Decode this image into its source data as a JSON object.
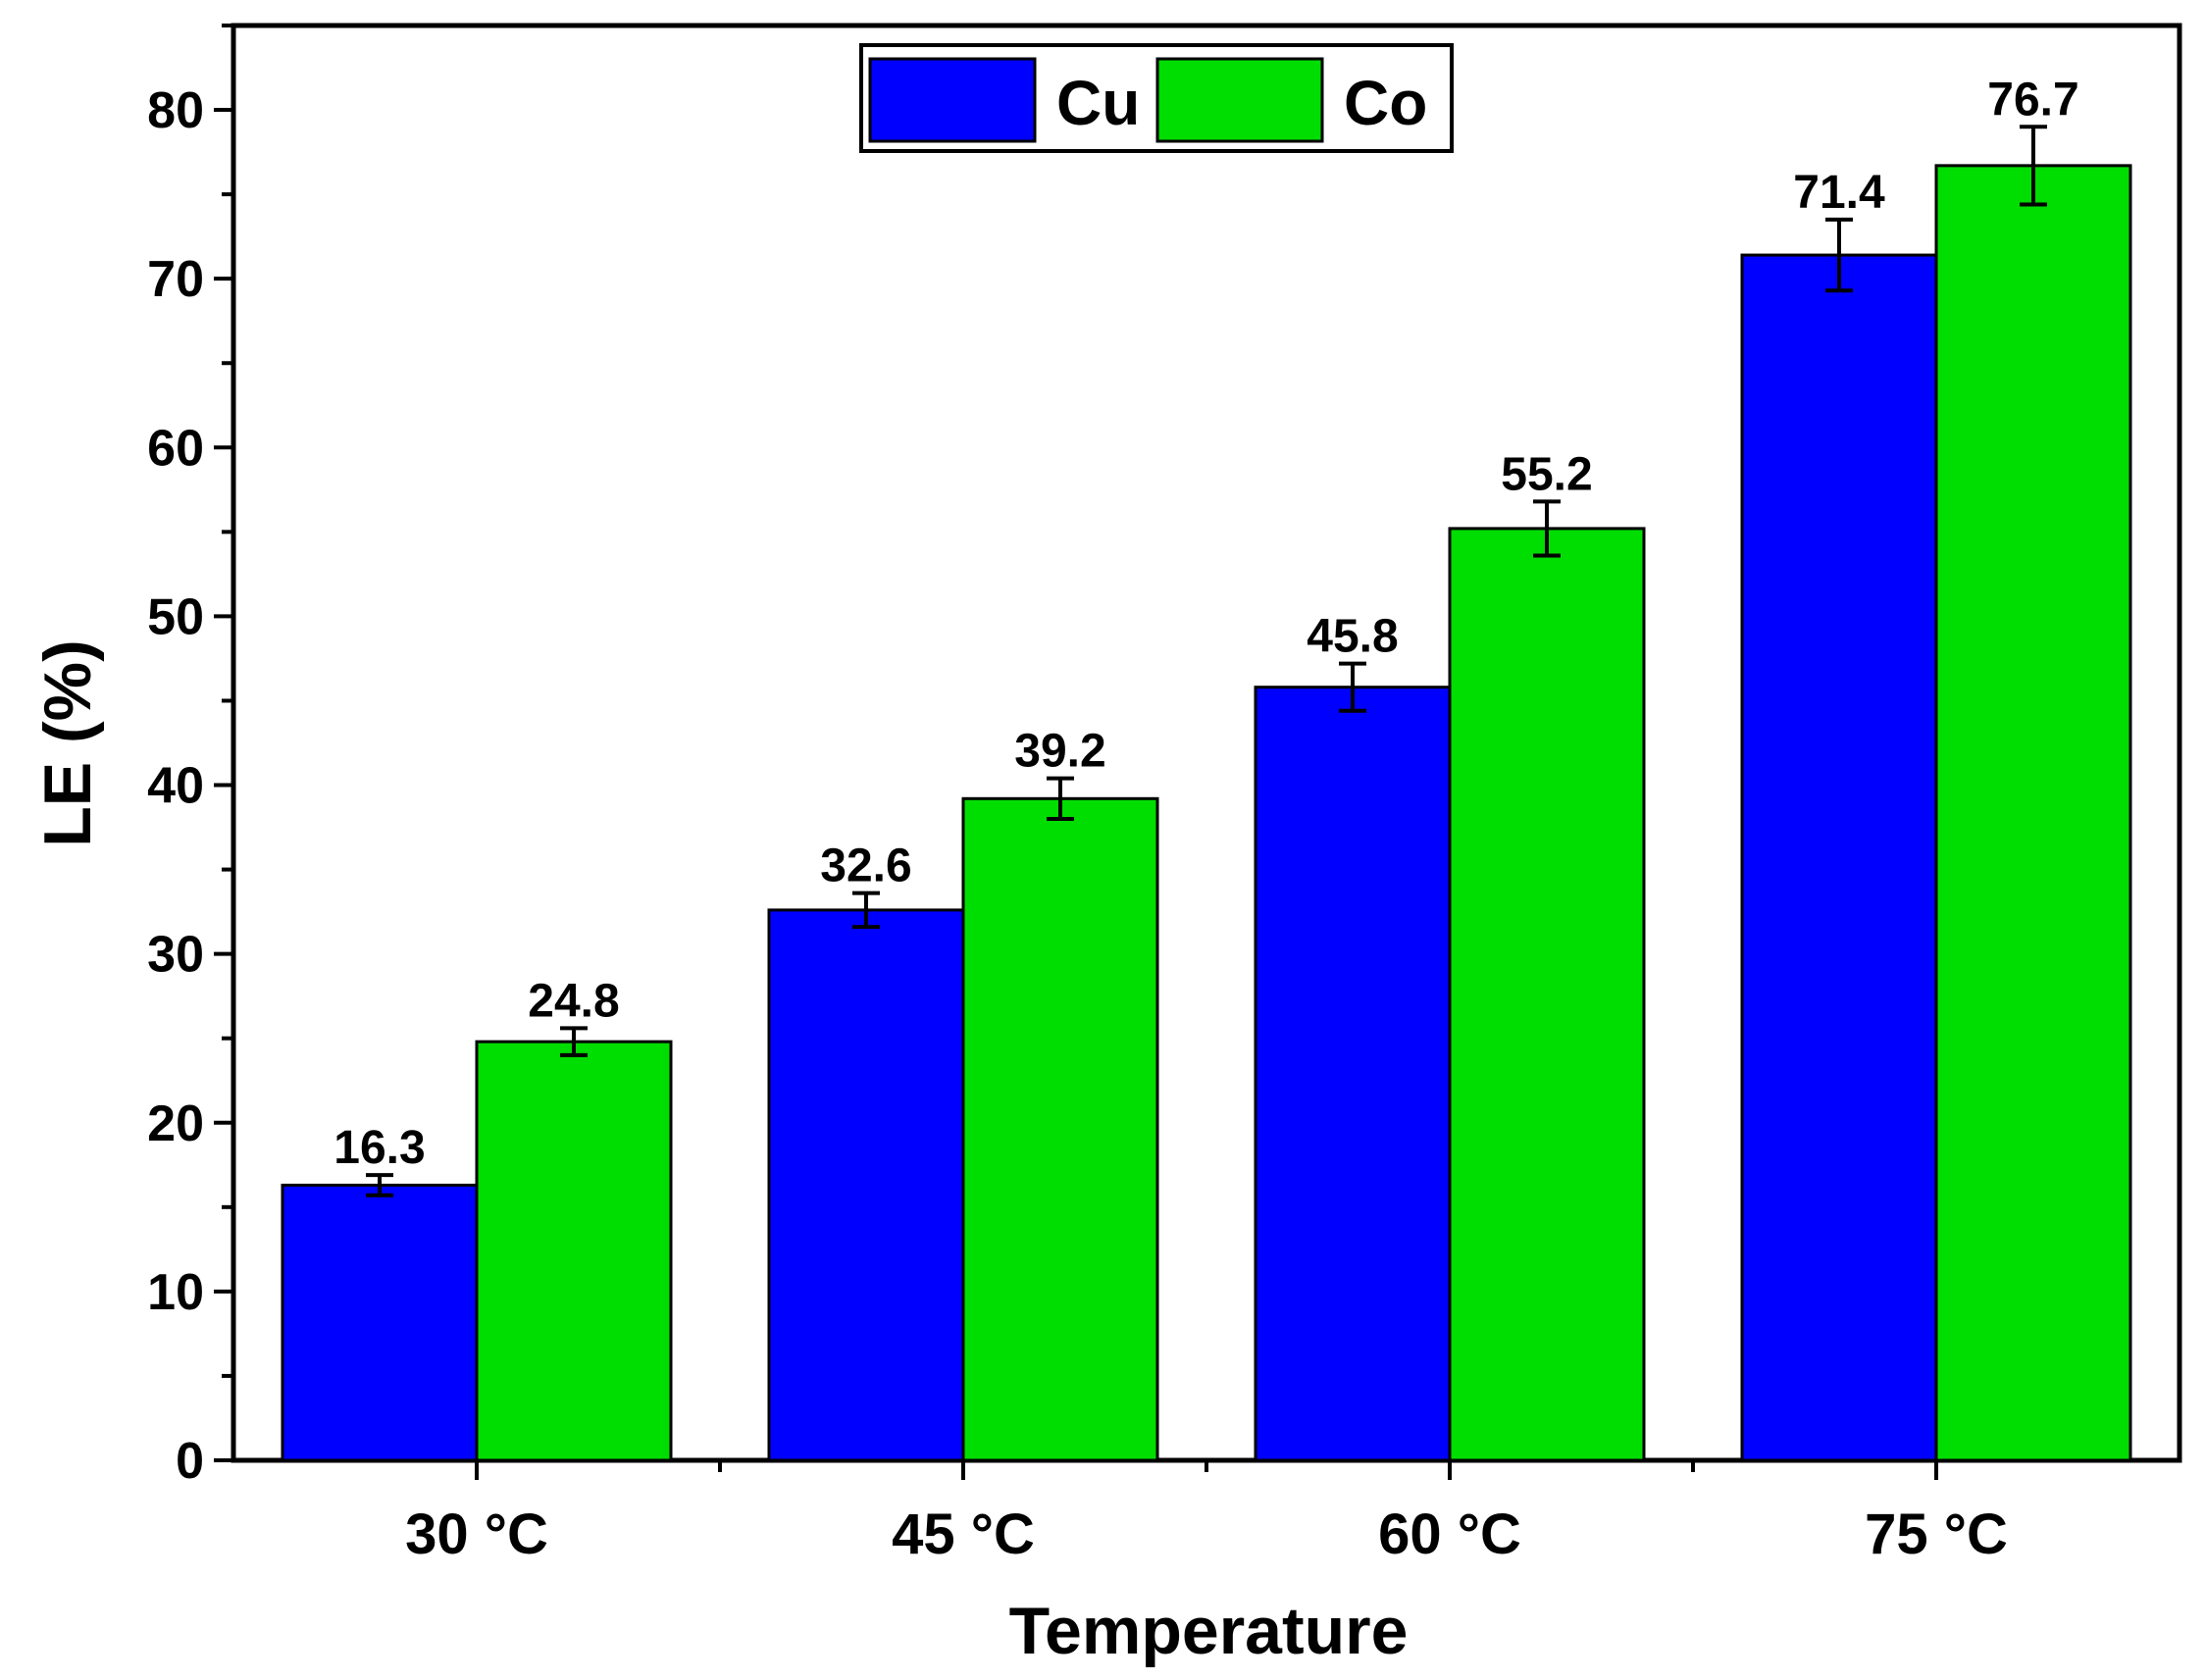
{
  "chart_data": {
    "type": "bar",
    "title": "",
    "xlabel": "Temperature",
    "ylabel": "LE (%)",
    "categories": [
      "30 °C",
      "45 °C",
      "60 °C",
      "75 °C"
    ],
    "ylim": [
      0,
      85
    ],
    "yticks": [
      0,
      10,
      20,
      30,
      40,
      50,
      60,
      70,
      80
    ],
    "grid": false,
    "legend_position": "top-center",
    "series": [
      {
        "name": "Cu",
        "color": "#0000ff",
        "values": [
          16.3,
          32.6,
          45.8,
          71.4
        ],
        "errors": [
          0.6,
          1.0,
          1.4,
          2.1
        ],
        "labels": [
          "16.3",
          "32.6",
          "45.8",
          "71.4"
        ]
      },
      {
        "name": "Co",
        "color": "#00dd00",
        "values": [
          24.8,
          39.2,
          55.2,
          76.7
        ],
        "errors": [
          0.8,
          1.2,
          1.6,
          2.3
        ],
        "labels": [
          "24.8",
          "39.2",
          "55.2",
          "76.7"
        ]
      }
    ]
  }
}
